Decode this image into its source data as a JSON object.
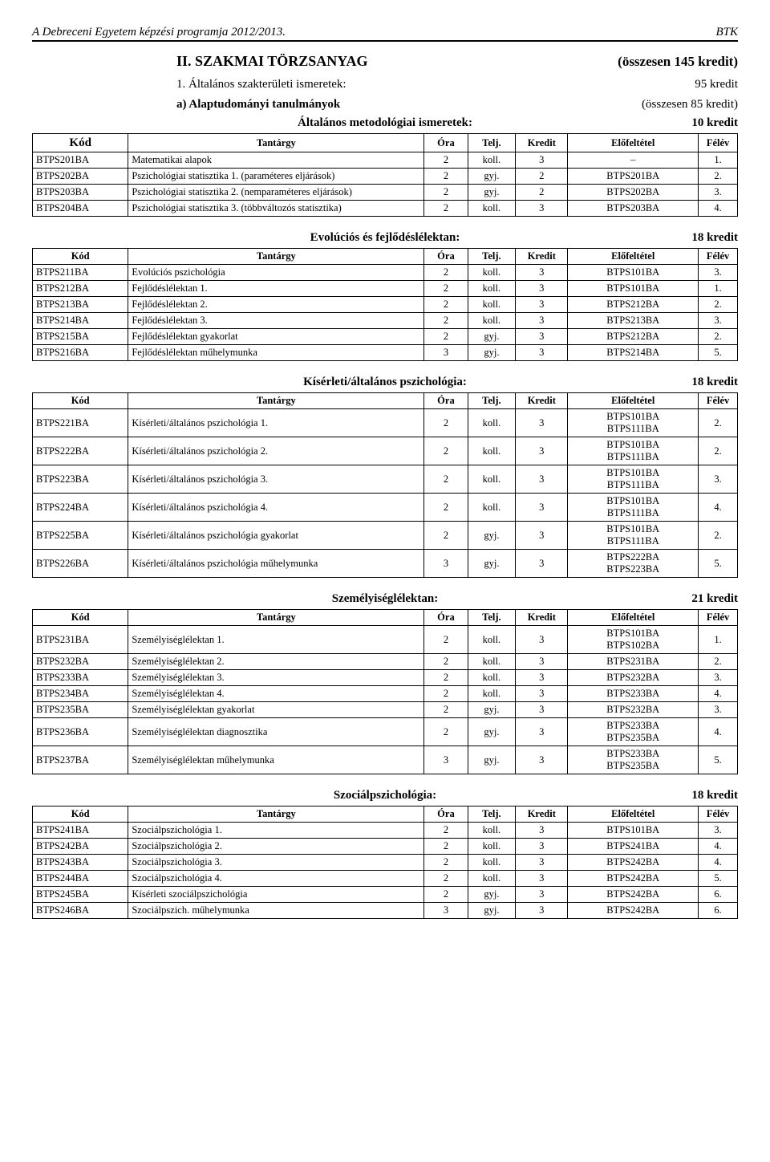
{
  "header": {
    "left": "A Debreceni Egyetem képzési programja 2012/2013.",
    "right": "BTK"
  },
  "main_section": {
    "title": "II. SZAKMAI TÖRZSANYAG",
    "right": "(összesen 145 kredit)"
  },
  "sub1": {
    "left": "1. Általános szakterületi ismeretek:",
    "right": "95 kredit"
  },
  "sub2": {
    "left": "a) Alaptudományi tanulmányok",
    "right": "(összesen 85 kredit)"
  },
  "kod_label": "Kód",
  "common_headers": [
    "Tantárgy",
    "Óra",
    "Telj.",
    "Kredit",
    "Előfeltétel",
    "Félév"
  ],
  "tables": [
    {
      "title": "Általános metodológiai ismeretek:",
      "credit": "10 kredit",
      "show_kod_header": true,
      "rows": [
        [
          "BTPS201BA",
          "Matematikai alapok",
          "2",
          "koll.",
          "3",
          "–",
          "1."
        ],
        [
          "BTPS202BA",
          "Pszichológiai statisztika 1. (paraméteres eljárások)",
          "2",
          "gyj.",
          "2",
          "BTPS201BA",
          "2."
        ],
        [
          "BTPS203BA",
          "Pszichológiai statisztika 2. (nemparaméteres eljárások)",
          "2",
          "gyj.",
          "2",
          "BTPS202BA",
          "3."
        ],
        [
          "BTPS204BA",
          "Pszichológiai statisztika 3. (többváltozós statisztika)",
          "2",
          "koll.",
          "3",
          "BTPS203BA",
          "4."
        ]
      ]
    },
    {
      "title": "Evolúciós és fejlődéslélektan:",
      "credit": "18 kredit",
      "rows": [
        [
          "BTPS211BA",
          "Evolúciós pszichológia",
          "2",
          "koll.",
          "3",
          "BTPS101BA",
          "3."
        ],
        [
          "BTPS212BA",
          "Fejlődéslélektan 1.",
          "2",
          "koll.",
          "3",
          "BTPS101BA",
          "1."
        ],
        [
          "BTPS213BA",
          "Fejlődéslélektan 2.",
          "2",
          "koll.",
          "3",
          "BTPS212BA",
          "2."
        ],
        [
          "BTPS214BA",
          "Fejlődéslélektan 3.",
          "2",
          "koll.",
          "3",
          "BTPS213BA",
          "3."
        ],
        [
          "BTPS215BA",
          "Fejlődéslélektan gyakorlat",
          "2",
          "gyj.",
          "3",
          "BTPS212BA",
          "2."
        ],
        [
          "BTPS216BA",
          "Fejlődéslélektan műhelymunka",
          "3",
          "gyj.",
          "3",
          "BTPS214BA",
          "5."
        ]
      ]
    },
    {
      "title": "Kísérleti/általános pszichológia:",
      "credit": "18 kredit",
      "rows": [
        [
          "BTPS221BA",
          "Kísérleti/általános pszichológia 1.",
          "2",
          "koll.",
          "3",
          "BTPS101BA\nBTPS111BA",
          "2."
        ],
        [
          "BTPS222BA",
          "Kísérleti/általános pszichológia 2.",
          "2",
          "koll.",
          "3",
          "BTPS101BA\nBTPS111BA",
          "2."
        ],
        [
          "BTPS223BA",
          "Kísérleti/általános pszichológia 3.",
          "2",
          "koll.",
          "3",
          "BTPS101BA\nBTPS111BA",
          "3."
        ],
        [
          "BTPS224BA",
          "Kísérleti/általános pszichológia 4.",
          "2",
          "koll.",
          "3",
          "BTPS101BA\nBTPS111BA",
          "4."
        ],
        [
          "BTPS225BA",
          "Kísérleti/általános pszichológia gyakorlat",
          "2",
          "gyj.",
          "3",
          "BTPS101BA\nBTPS111BA",
          "2."
        ],
        [
          "BTPS226BA",
          "Kísérleti/általános pszichológia műhelymunka",
          "3",
          "gyj.",
          "3",
          "BTPS222BA\nBTPS223BA",
          "5."
        ]
      ]
    },
    {
      "title": "Személyiséglélektan:",
      "credit": "21 kredit",
      "rows": [
        [
          "BTPS231BA",
          "Személyiséglélektan 1.",
          "2",
          "koll.",
          "3",
          "BTPS101BA\nBTPS102BA",
          "1."
        ],
        [
          "BTPS232BA",
          "Személyiséglélektan 2.",
          "2",
          "koll.",
          "3",
          "BTPS231BA",
          "2."
        ],
        [
          "BTPS233BA",
          "Személyiséglélektan 3.",
          "2",
          "koll.",
          "3",
          "BTPS232BA",
          "3."
        ],
        [
          "BTPS234BA",
          "Személyiséglélektan 4.",
          "2",
          "koll.",
          "3",
          "BTPS233BA",
          "4."
        ],
        [
          "BTPS235BA",
          "Személyiséglélektan gyakorlat",
          "2",
          "gyj.",
          "3",
          "BTPS232BA",
          "3."
        ],
        [
          "BTPS236BA",
          "Személyiséglélektan diagnosztika",
          "2",
          "gyj.",
          "3",
          "BTPS233BA\nBTPS235BA",
          "4."
        ],
        [
          "BTPS237BA",
          "Személyiséglélektan műhelymunka",
          "3",
          "gyj.",
          "3",
          "BTPS233BA\nBTPS235BA",
          "5."
        ]
      ]
    },
    {
      "title": "Szociálpszichológia:",
      "credit": "18 kredit",
      "rows": [
        [
          "BTPS241BA",
          "Szociálpszichológia 1.",
          "2",
          "koll.",
          "3",
          "BTPS101BA",
          "3."
        ],
        [
          "BTPS242BA",
          "Szociálpszichológia 2.",
          "2",
          "koll.",
          "3",
          "BTPS241BA",
          "4."
        ],
        [
          "BTPS243BA",
          "Szociálpszichológia 3.",
          "2",
          "koll.",
          "3",
          "BTPS242BA",
          "4."
        ],
        [
          "BTPS244BA",
          "Szociálpszichológia 4.",
          "2",
          "koll.",
          "3",
          "BTPS242BA",
          "5."
        ],
        [
          "BTPS245BA",
          "Kísérleti szociálpszichológia",
          "2",
          "gyj.",
          "3",
          "BTPS242BA",
          "6."
        ],
        [
          "BTPS246BA",
          "Szociálpszich. műhelymunka",
          "3",
          "gyj.",
          "3",
          "BTPS242BA",
          "6."
        ]
      ]
    }
  ]
}
